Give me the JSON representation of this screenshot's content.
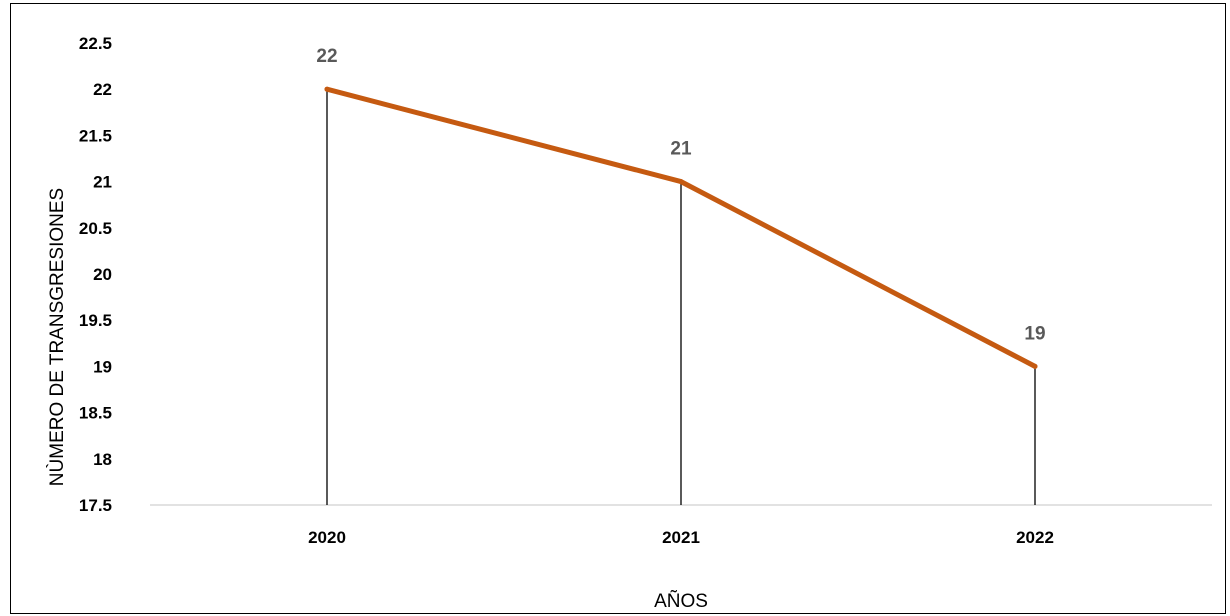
{
  "chart_data": {
    "type": "line",
    "title": "",
    "xlabel": "AÑOS",
    "ylabel": "NÙMERO DE TRANSGRESIONES",
    "categories": [
      "2020",
      "2021",
      "2022"
    ],
    "series": [
      {
        "name": "",
        "values": [
          22,
          21,
          19
        ],
        "data_labels": [
          "22",
          "21",
          "19"
        ]
      }
    ],
    "ylim": [
      17.5,
      22.5
    ],
    "y_ticks": [
      "17.5",
      "18",
      "18.5",
      "19",
      "19.5",
      "20",
      "20.5",
      "21",
      "21.5",
      "22",
      "22.5"
    ],
    "drop_lines": true,
    "grid": false,
    "legend": "none",
    "colors": {
      "series_line": "#C55A11",
      "drop_line": "#000000",
      "data_label": "#595959",
      "axis": "#d9d9d9"
    }
  }
}
